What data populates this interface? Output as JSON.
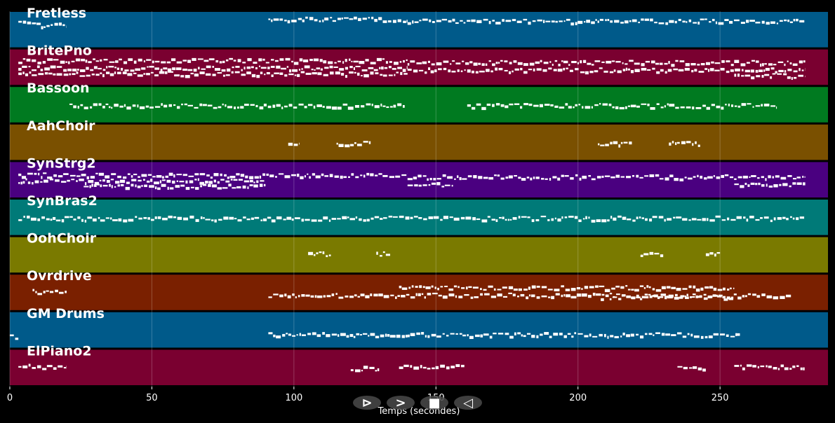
{
  "chart_data": {
    "type": "piano-roll",
    "xlabel": "Temps (secondes)",
    "xlim": [
      0,
      288
    ],
    "xticks": [
      0,
      50,
      100,
      150,
      200,
      250
    ],
    "grid": true,
    "tracks": [
      {
        "name": "Fretless",
        "color": "#005a8a",
        "notes": [
          [
            3,
            11,
            0.3
          ],
          [
            11,
            20,
            0.35
          ],
          [
            91,
            140,
            0.2
          ],
          [
            140,
            280,
            0.25
          ]
        ]
      },
      {
        "name": "BritePno",
        "color": "#7a0030",
        "notes": [
          [
            3,
            140,
            0.3
          ],
          [
            3,
            140,
            0.5
          ],
          [
            3,
            140,
            0.65
          ],
          [
            140,
            280,
            0.35
          ],
          [
            140,
            280,
            0.55
          ],
          [
            255,
            280,
            0.7
          ]
        ]
      },
      {
        "name": "Bassoon",
        "color": "#007a20",
        "notes": [
          [
            21,
            139,
            0.5
          ],
          [
            161,
            270,
            0.5
          ]
        ]
      },
      {
        "name": "AahChoir",
        "color": "#7a5000",
        "notes": [
          [
            98,
            102,
            0.5
          ],
          [
            115,
            127,
            0.5
          ],
          [
            207,
            219,
            0.5
          ],
          [
            232,
            243,
            0.5
          ]
        ]
      },
      {
        "name": "SynStrg2",
        "color": "#4a0080",
        "notes": [
          [
            3,
            90,
            0.5
          ],
          [
            3,
            140,
            0.35
          ],
          [
            26,
            90,
            0.65
          ],
          [
            140,
            280,
            0.4
          ],
          [
            140,
            156,
            0.6
          ],
          [
            255,
            280,
            0.6
          ]
        ]
      },
      {
        "name": "SynBras2",
        "color": "#007a78",
        "notes": [
          [
            3,
            280,
            0.5
          ]
        ]
      },
      {
        "name": "OohChoir",
        "color": "#7a7a00",
        "notes": [
          [
            105,
            113,
            0.45
          ],
          [
            129,
            134,
            0.45
          ],
          [
            222,
            230,
            0.45
          ],
          [
            245,
            250,
            0.45
          ]
        ]
      },
      {
        "name": "Ovrdrive",
        "color": "#7a2000",
        "notes": [
          [
            8,
            20,
            0.45
          ],
          [
            91,
            275,
            0.55
          ],
          [
            137,
            255,
            0.35
          ],
          [
            208,
            255,
            0.6
          ]
        ]
      },
      {
        "name": "GM Drums",
        "color": "#005a8a",
        "notes": [
          [
            0,
            3,
            0.65
          ],
          [
            91,
            140,
            0.6
          ],
          [
            140,
            256,
            0.6
          ],
          [
            256,
            257,
            0.55
          ]
        ]
      },
      {
        "name": "ElPiano2",
        "color": "#7a0030",
        "notes": [
          [
            3,
            20,
            0.45
          ],
          [
            120,
            130,
            0.5
          ],
          [
            137,
            160,
            0.45
          ],
          [
            235,
            245,
            0.5
          ],
          [
            255,
            280,
            0.45
          ]
        ]
      }
    ]
  },
  "controls": [
    {
      "name": "play-button",
      "symbol": "⊳"
    },
    {
      "name": "forward-button",
      "symbol": ">"
    },
    {
      "name": "stop-button",
      "symbol": "■"
    },
    {
      "name": "back-button",
      "symbol": "◁"
    }
  ]
}
